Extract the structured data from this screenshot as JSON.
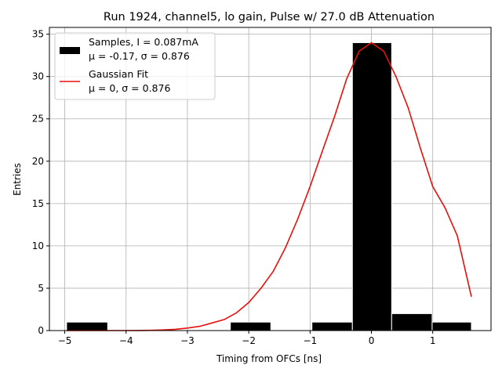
{
  "chart_data": {
    "type": "bar",
    "title": "Run 1924, channel5, lo gain, Pulse w/ 27.0 dB Attenuation",
    "xlabel": "Timing from OFCs [ns]",
    "ylabel": "Entries",
    "xlim": [
      -5.25,
      1.95
    ],
    "ylim": [
      0,
      35.8
    ],
    "xticks": [
      -5,
      -4,
      -3,
      -2,
      -1,
      0,
      1
    ],
    "xtick_labels": [
      "−5",
      "−4",
      "−3",
      "−2",
      "−1",
      "0",
      "1"
    ],
    "yticks": [
      0,
      5,
      10,
      15,
      20,
      25,
      30,
      35
    ],
    "ytick_labels": [
      "0",
      "5",
      "10",
      "15",
      "20",
      "25",
      "30",
      "35"
    ],
    "grid": true,
    "legend_position": "top-left",
    "histogram": {
      "name": "Samples, I = 0.087mA",
      "name_line2": "μ = -0.17, σ = 0.876",
      "color": "#000000",
      "bins": [
        {
          "x0": -4.97,
          "x1": -4.3,
          "count": 1
        },
        {
          "x0": -2.3,
          "x1": -1.64,
          "count": 1
        },
        {
          "x0": -0.97,
          "x1": -0.31,
          "count": 1
        },
        {
          "x0": -0.31,
          "x1": 0.33,
          "count": 34
        },
        {
          "x0": 0.33,
          "x1": 0.99,
          "count": 2
        },
        {
          "x0": 0.99,
          "x1": 1.63,
          "count": 1
        }
      ]
    },
    "fit": {
      "name": "Gaussian Fit",
      "name_line2": "μ = 0, σ = 0.876",
      "color": "#e8100b",
      "x": [
        -4.97,
        -4.8,
        -4.6,
        -4.4,
        -4.2,
        -4.0,
        -3.8,
        -3.6,
        -3.4,
        -3.2,
        -3.0,
        -2.8,
        -2.6,
        -2.4,
        -2.2,
        -2.0,
        -1.8,
        -1.6,
        -1.4,
        -1.2,
        -1.0,
        -0.8,
        -0.6,
        -0.4,
        -0.2,
        0.0,
        0.2,
        0.4,
        0.6,
        0.8,
        1.0,
        1.2,
        1.4,
        1.63
      ],
      "y": [
        0,
        0,
        0,
        0,
        0,
        0,
        0.01,
        0.03,
        0.07,
        0.15,
        0.3,
        0.5,
        0.9,
        1.3,
        2.1,
        3.3,
        5.0,
        7.0,
        9.8,
        13.2,
        17.0,
        21.2,
        25.3,
        29.8,
        33.0,
        34.0,
        33.0,
        30.0,
        26.3,
        21.5,
        17.0,
        14.5,
        11.2,
        4.0
      ]
    }
  }
}
